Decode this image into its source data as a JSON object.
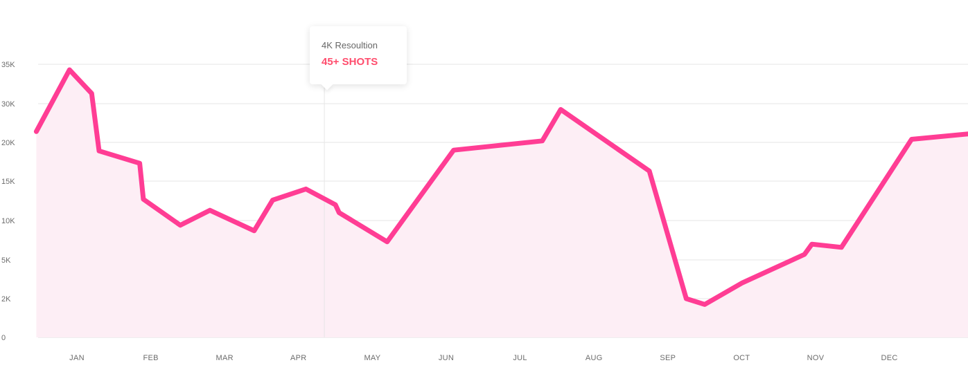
{
  "chart_data": {
    "type": "area",
    "title": "",
    "xlabel": "",
    "ylabel": "",
    "y_ticks": [
      {
        "value": 0,
        "label": "0"
      },
      {
        "value": 2000,
        "label": "2K"
      },
      {
        "value": 5000,
        "label": "5K"
      },
      {
        "value": 10000,
        "label": "10K"
      },
      {
        "value": 15000,
        "label": "15K"
      },
      {
        "value": 20000,
        "label": "20K"
      },
      {
        "value": 30000,
        "label": "30K"
      },
      {
        "value": 35000,
        "label": "35K"
      }
    ],
    "x_categories": [
      "JAN",
      "FEB",
      "MAR",
      "APR",
      "MAY",
      "JUN",
      "JUL",
      "AUG",
      "SEP",
      "OCT",
      "NOV",
      "DEC"
    ],
    "x_range": [
      -0.55,
      11.4
    ],
    "grid": true,
    "series": [
      {
        "points": [
          {
            "x": -0.55,
            "y": 22800
          },
          {
            "x": -0.1,
            "y": 34300
          },
          {
            "x": 0.2,
            "y": 31300
          },
          {
            "x": 0.3,
            "y": 18900
          },
          {
            "x": 0.85,
            "y": 17300
          },
          {
            "x": 0.9,
            "y": 12700
          },
          {
            "x": 1.4,
            "y": 9400
          },
          {
            "x": 1.8,
            "y": 11300
          },
          {
            "x": 2.4,
            "y": 8700
          },
          {
            "x": 2.65,
            "y": 12600
          },
          {
            "x": 3.1,
            "y": 14000
          },
          {
            "x": 3.5,
            "y": 12000
          },
          {
            "x": 3.55,
            "y": 11000
          },
          {
            "x": 4.2,
            "y": 7300
          },
          {
            "x": 5.1,
            "y": 19000
          },
          {
            "x": 6.3,
            "y": 20400
          },
          {
            "x": 6.55,
            "y": 28500
          },
          {
            "x": 7.75,
            "y": 16300
          },
          {
            "x": 8.25,
            "y": 2000
          },
          {
            "x": 8.5,
            "y": 1700
          },
          {
            "x": 9.0,
            "y": 3200
          },
          {
            "x": 9.85,
            "y": 5700
          },
          {
            "x": 9.95,
            "y": 7000
          },
          {
            "x": 10.35,
            "y": 6600
          },
          {
            "x": 11.3,
            "y": 20800
          },
          {
            "x": 12.35,
            "y": 22700
          }
        ]
      }
    ],
    "colors": {
      "line": "#ff3d94",
      "area": "#fdeef5",
      "grid": "#e4e4e4",
      "tooltip_value": "#ff4d6d"
    },
    "annotation": {
      "x": 3.35,
      "title": "4K Resoultion",
      "value": "45+ SHOTS"
    }
  }
}
